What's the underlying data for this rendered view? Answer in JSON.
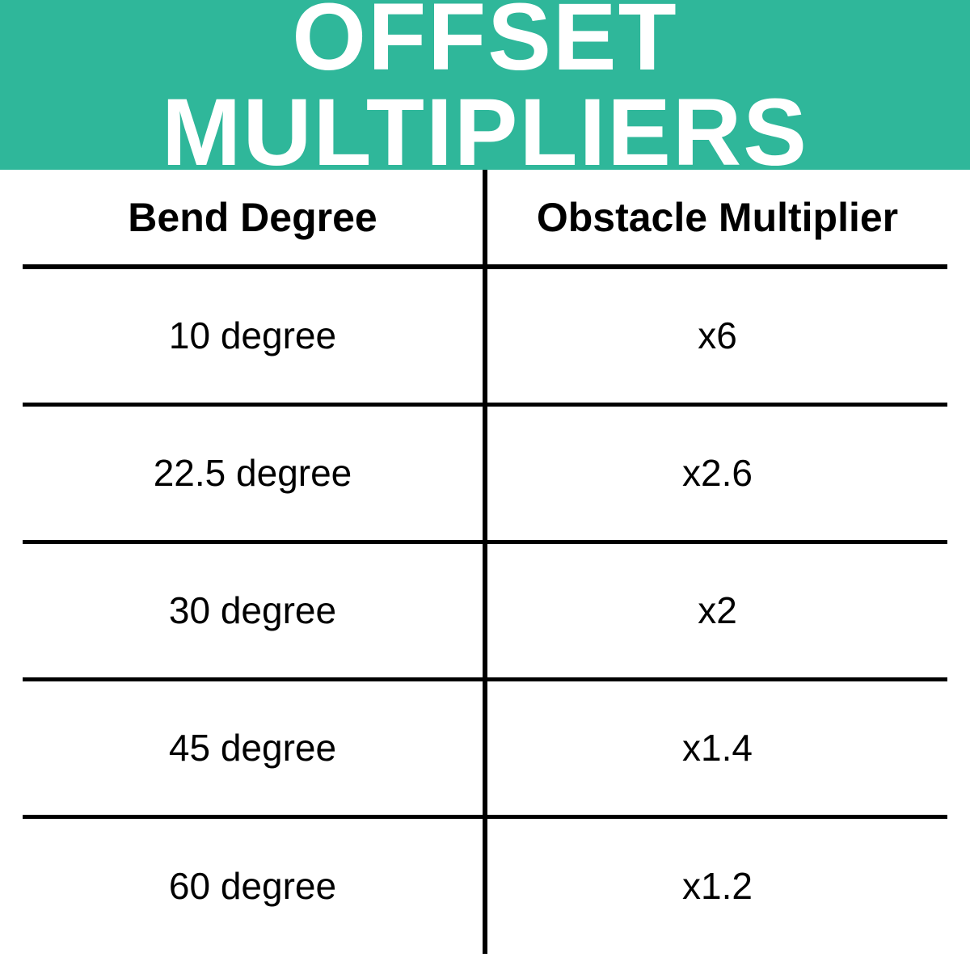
{
  "header": {
    "title": "OFFSET MULTIPLIERS",
    "background_color": "#2fb79a",
    "title_color": "#ffffff",
    "title_fontsize": 118
  },
  "table": {
    "type": "table",
    "columns": [
      "Bend Degree",
      "Obstacle Multiplier"
    ],
    "rows": [
      [
        "10 degree",
        "x6"
      ],
      [
        "22.5 degree",
        "x2.6"
      ],
      [
        "30 degree",
        "x2"
      ],
      [
        "45 degree",
        "x1.4"
      ],
      [
        "60 degree",
        "x1.2"
      ]
    ],
    "header_fontsize": 50,
    "cell_fontsize": 46,
    "border_color": "#000000",
    "background_color": "#ffffff",
    "text_color": "#000000"
  }
}
